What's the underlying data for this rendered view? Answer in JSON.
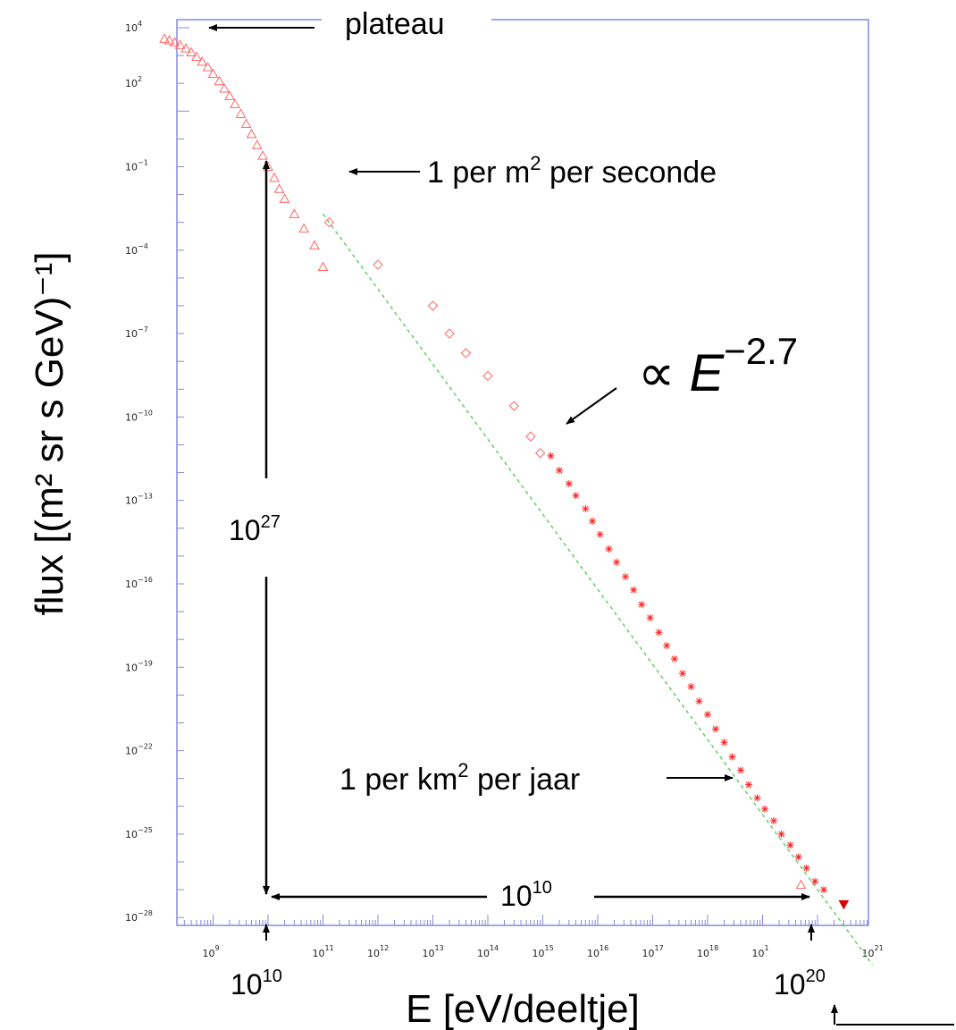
{
  "chart_data": {
    "type": "scatter",
    "xlabel": "E [eV/deeltje]",
    "ylabel": "flux [(m² sr s GeV)⁻¹]",
    "x_scale": "log",
    "y_scale": "log",
    "xlim": [
      100000000.0,
      1e+21
    ],
    "ylim": [
      1e-30,
      10000.0
    ],
    "x_ticks": [
      {
        "base": "10",
        "exp": "9"
      },
      {
        "base": "10",
        "exp": "11"
      },
      {
        "base": "10",
        "exp": "12"
      },
      {
        "base": "10",
        "exp": "13"
      },
      {
        "base": "10",
        "exp": "14"
      },
      {
        "base": "10",
        "exp": "15"
      },
      {
        "base": "10",
        "exp": "16"
      },
      {
        "base": "10",
        "exp": "17"
      },
      {
        "base": "10",
        "exp": "18"
      },
      {
        "base": "10",
        "exp": "1"
      },
      {
        "base": "10",
        "exp": "21"
      }
    ],
    "y_ticks": [
      {
        "base": "10",
        "exp": "4"
      },
      {
        "base": "10",
        "exp": "2"
      },
      {
        "base": "10",
        "exp": "−1"
      },
      {
        "base": "10",
        "exp": "−4"
      },
      {
        "base": "10",
        "exp": "−7"
      },
      {
        "base": "10",
        "exp": "−10"
      },
      {
        "base": "10",
        "exp": "−13"
      },
      {
        "base": "10",
        "exp": "−16"
      },
      {
        "base": "10",
        "exp": "−19"
      },
      {
        "base": "10",
        "exp": "−22"
      },
      {
        "base": "10",
        "exp": "−25"
      },
      {
        "base": "10",
        "exp": "−28"
      }
    ],
    "series": [
      {
        "marker": "triangle",
        "color": "#ff6666",
        "points": [
          [
            130000000.0,
            4000
          ],
          [
            160000000.0,
            3500
          ],
          [
            200000000.0,
            3000
          ],
          [
            250000000.0,
            2400
          ],
          [
            320000000.0,
            1800
          ],
          [
            400000000.0,
            1300
          ],
          [
            500000000.0,
            900
          ],
          [
            630000000.0,
            600
          ],
          [
            800000000.0,
            380
          ],
          [
            1000000000.0,
            220
          ],
          [
            1300000000.0,
            120
          ],
          [
            1600000000.0,
            65
          ],
          [
            2000000000.0,
            35
          ],
          [
            2500000000.0,
            18
          ],
          [
            3200000000.0,
            8
          ],
          [
            4000000000.0,
            3.5
          ],
          [
            5000000000.0,
            1.5
          ],
          [
            6300000000.0,
            0.6
          ],
          [
            8000000000.0,
            0.25
          ],
          [
            10000000000.0,
            0.1
          ],
          [
            13000000000.0,
            0.04
          ],
          [
            16000000000.0,
            0.016
          ],
          [
            20000000000.0,
            0.007
          ],
          [
            30000000000.0,
            0.002
          ],
          [
            45000000000.0,
            0.0006
          ],
          [
            70000000000.0,
            0.00015
          ],
          [
            100000000000.0,
            2.5e-05
          ],
          [
            5e+19,
            1.5e-27
          ]
        ]
      },
      {
        "marker": "diamond",
        "color": "#ff6666",
        "points": [
          [
            130000000000.0,
            0.001
          ],
          [
            1000000000000.0,
            3e-05
          ],
          [
            10000000000000.0,
            1e-06
          ],
          [
            20000000000000.0,
            1e-07
          ],
          [
            40000000000000.0,
            2e-08
          ],
          [
            100000000000000.0,
            3e-09
          ],
          [
            300000000000000.0,
            2.5e-10
          ],
          [
            600000000000000.0,
            2e-11
          ],
          [
            900000000000000.0,
            5e-12
          ]
        ]
      },
      {
        "marker": "cross",
        "color": "#ff2222",
        "points": [
          [
            1400000000000000.0,
            4e-12
          ],
          [
            2000000000000000.0,
            1.2e-12
          ],
          [
            3000000000000000.0,
            4e-13
          ],
          [
            4000000000000000.0,
            1.5e-13
          ],
          [
            6000000000000000.0,
            5e-14
          ],
          [
            8000000000000000.0,
            1.8e-14
          ],
          [
            1.1e+16,
            6e-15
          ],
          [
            1.6e+16,
            1.8e-15
          ],
          [
            2.2e+16,
            6e-16
          ],
          [
            3.2e+16,
            1.8e-16
          ],
          [
            4.5e+16,
            6e-17
          ],
          [
            6.3e+16,
            1.8e-17
          ],
          [
            9e+16,
            6e-18
          ],
          [
            1.3e+17,
            1.8e-18
          ],
          [
            1.8e+17,
            6e-19
          ],
          [
            2.5e+17,
            2e-19
          ],
          [
            3.5e+17,
            6e-20
          ],
          [
            5e+17,
            2e-20
          ],
          [
            7e+17,
            6e-21
          ],
          [
            1e+18,
            2e-21
          ],
          [
            1.4e+18,
            6e-22
          ],
          [
            2e+18,
            2e-22
          ],
          [
            2.8e+18,
            6e-23
          ],
          [
            4e+18,
            2e-23
          ],
          [
            5.6e+18,
            6e-24
          ],
          [
            8e+18,
            2e-24
          ],
          [
            1.1e+19,
            8e-25
          ],
          [
            1.6e+19,
            3e-25
          ],
          [
            2.2e+19,
            1e-25
          ],
          [
            3.2e+19,
            4e-26
          ],
          [
            4.5e+19,
            1.5e-26
          ],
          [
            6.3e+19,
            6e-27
          ],
          [
            9e+19,
            2e-27
          ],
          [
            1.3e+20,
            1e-27
          ]
        ]
      },
      {
        "marker": "triangle-down",
        "color": "#dd0000",
        "points": [
          [
            3e+20,
            3e-28
          ]
        ]
      }
    ],
    "fit_line": {
      "label": "∝ E^−2.7",
      "style": "dashed",
      "color": "#66cc66",
      "points": [
        [
          100000000000.0,
          0.002
        ],
        [
          1e+21,
          2e-30
        ]
      ]
    }
  },
  "annotations": {
    "plateau": "plateau",
    "per_m2_prefix": "1 per m",
    "per_m2_sup": "2",
    "per_m2_suffix": " per seconde",
    "power_law_prefix": "∝ ",
    "power_law_E": "E",
    "power_law_exp": "−2.7",
    "vertical_span_base": "10",
    "vertical_span_exp": "27",
    "horizontal_span_base": "10",
    "horizontal_span_exp": "10",
    "per_km2_prefix": "1 per km",
    "per_km2_sup": "2",
    "per_km2_suffix": " per jaar",
    "e_low_base": "10",
    "e_low_exp": "10",
    "e_high_base": "10",
    "e_high_exp": "20"
  },
  "colors": {
    "frame": "#8888dd",
    "markers": "#ff6666",
    "fit_line": "#66cc66"
  }
}
